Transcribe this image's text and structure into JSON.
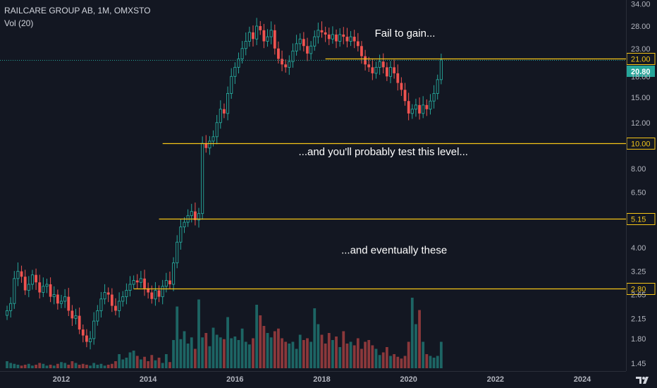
{
  "header": {
    "symbol_line": "RAILCARE GROUP AB, 1M, OMXSTO",
    "volume_line": "Vol (20)"
  },
  "colors": {
    "background": "#131722",
    "up": "#26a69a",
    "down": "#ef5350",
    "level_line": "#f5c518",
    "last_price": "#26a69a",
    "axis_text": "#b2b5be",
    "annotation": "#ffffff"
  },
  "chart_data": {
    "type": "candlestick",
    "title": "RAILCARE GROUP AB, 1M, OMXSTO",
    "y_scale": "log",
    "y_ticks": [
      "34.00",
      "28.00",
      "23.00",
      "18.00",
      "15.00",
      "12.00",
      "10.00",
      "8.00",
      "6.50",
      "5.15",
      "4.00",
      "3.25",
      "2.80",
      "2.65",
      "2.15",
      "1.80",
      "1.45"
    ],
    "x_ticks": [
      "2012",
      "2014",
      "2016",
      "2018",
      "2020",
      "2022",
      "2024"
    ],
    "x_range": [
      "2010-10",
      "2025-06"
    ],
    "levels": [
      {
        "price": "21.00",
        "from": "2018-02"
      },
      {
        "price": "10.00",
        "from": "2014-05"
      },
      {
        "price": "5.15",
        "from": "2014-04"
      },
      {
        "price": "2.80",
        "from": "2013-09"
      }
    ],
    "last_price": {
      "value": "20.80",
      "label": "20.80"
    },
    "annotations": [
      {
        "text": "Fail to gain...",
        "at_date": "2019-12",
        "at_price": 25.5
      },
      {
        "text": "...and you'll probably test this level...",
        "at_date": "2019-06",
        "at_price": 9.0
      },
      {
        "text": "...and eventually these",
        "at_date": "2019-09",
        "at_price": 3.8
      }
    ],
    "volume_indicator": "Vol (20)",
    "series": [
      {
        "name": "RAILCARE GROUP AB",
        "start": "2010-10",
        "closes": [
          2.3,
          2.45,
          3.05,
          3.25,
          3.1,
          2.75,
          2.9,
          3.15,
          2.95,
          2.7,
          2.85,
          2.9,
          2.6,
          2.65,
          2.45,
          2.5,
          2.6,
          2.3,
          2.15,
          2.2,
          1.95,
          1.85,
          1.75,
          1.8,
          2.1,
          2.3,
          2.55,
          2.7,
          2.65,
          2.4,
          2.3,
          2.5,
          2.6,
          2.75,
          2.9,
          3.0,
          2.95,
          3.05,
          2.8,
          2.7,
          2.55,
          2.75,
          2.6,
          2.85,
          3.0,
          2.9,
          3.5,
          4.2,
          4.8,
          5.0,
          5.3,
          5.5,
          5.1,
          5.4,
          10.0,
          9.6,
          10.2,
          10.6,
          12.0,
          13.5,
          13.0,
          15.5,
          18.0,
          19.5,
          21.0,
          23.0,
          24.5,
          26.5,
          25.0,
          28.0,
          27.0,
          24.5,
          25.5,
          27.0,
          23.0,
          21.0,
          20.0,
          19.5,
          20.5,
          22.5,
          24.0,
          25.0,
          23.5,
          22.0,
          23.5,
          25.5,
          27.0,
          26.5,
          26.0,
          25.0,
          26.0,
          24.5,
          26.0,
          25.5,
          24.5,
          25.5,
          24.5,
          23.5,
          21.5,
          20.0,
          19.5,
          18.5,
          19.5,
          20.5,
          19.5,
          18.0,
          19.5,
          18.5,
          17.0,
          16.0,
          14.5,
          13.0,
          13.5,
          14.0,
          13.0,
          14.0,
          13.5,
          14.5,
          15.5,
          17.5,
          20.8
        ]
      }
    ],
    "volume": [
      0.08,
      0.06,
      0.05,
      0.04,
      0.03,
      0.04,
      0.05,
      0.03,
      0.04,
      0.06,
      0.05,
      0.03,
      0.04,
      0.03,
      0.05,
      0.07,
      0.06,
      0.04,
      0.08,
      0.06,
      0.04,
      0.05,
      0.04,
      0.03,
      0.06,
      0.04,
      0.05,
      0.03,
      0.04,
      0.05,
      0.08,
      0.16,
      0.1,
      0.12,
      0.18,
      0.2,
      0.14,
      0.1,
      0.13,
      0.08,
      0.15,
      0.09,
      0.12,
      0.06,
      0.16,
      0.07,
      0.32,
      0.7,
      0.33,
      0.42,
      0.28,
      0.35,
      0.22,
      0.78,
      0.35,
      0.4,
      0.25,
      0.46,
      0.38,
      0.35,
      0.33,
      0.58,
      0.34,
      0.36,
      0.32,
      0.45,
      0.3,
      0.27,
      0.34,
      0.72,
      0.6,
      0.48,
      0.4,
      0.35,
      0.42,
      0.45,
      0.34,
      0.3,
      0.28,
      0.3,
      0.22,
      0.38,
      0.32,
      0.34,
      0.3,
      0.68,
      0.5,
      0.38,
      0.28,
      0.4,
      0.32,
      0.36,
      0.24,
      0.42,
      0.28,
      0.3,
      0.26,
      0.34,
      0.22,
      0.3,
      0.32,
      0.26,
      0.22,
      0.15,
      0.18,
      0.24,
      0.14,
      0.16,
      0.13,
      0.11,
      0.14,
      0.3,
      0.8,
      0.5,
      0.66,
      0.3,
      0.16,
      0.14,
      0.12,
      0.14,
      0.3
    ]
  }
}
